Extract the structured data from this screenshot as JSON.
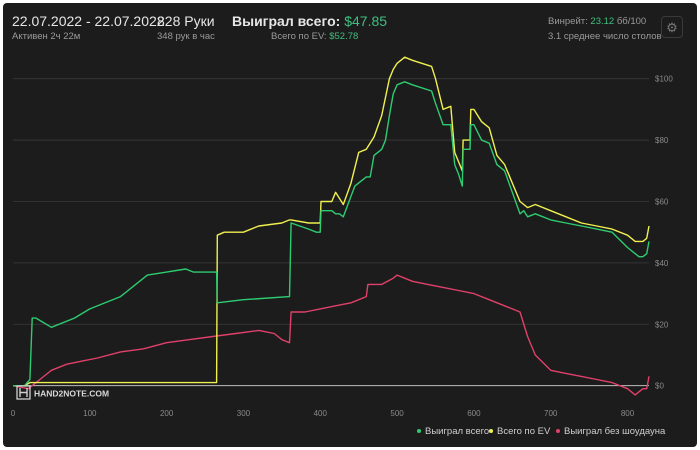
{
  "header": {
    "date_range": "22.07.2022 - 22.07.2022",
    "active_time": "Активен 2ч 22м",
    "hands_count": "828 Руки",
    "hands_per_hour": "348 рук в час",
    "won_label": "Выиграл всего:",
    "won_value": "$47.85",
    "ev_label": "Всего по EV:",
    "ev_value": "$52.78",
    "winrate_label": "Винрейт:",
    "winrate_value": "23.12",
    "winrate_unit": "бб/100",
    "avg_tables": "3.1 среднее число столов"
  },
  "logo_text": "HAND2NOTE.COM",
  "colors": {
    "background": "#1c1c1c",
    "won": "#2ecc71",
    "ev": "#f0f050",
    "no_showdown": "#e0406a",
    "grid": "#3a3a3a",
    "zero_line": "#bfbfbf"
  },
  "chart_data": {
    "type": "line",
    "xlim": [
      0,
      828
    ],
    "ylim": [
      -5,
      110
    ],
    "x_ticks": [
      0,
      100,
      200,
      300,
      400,
      500,
      600,
      700,
      800
    ],
    "y_ticks": [
      0,
      20,
      40,
      60,
      80,
      100
    ],
    "y_tick_labels": [
      "$0",
      "$20",
      "$40",
      "$60",
      "$80",
      "$100"
    ],
    "grid": true,
    "legend_position": "bottom-right",
    "series": [
      {
        "name": "Выиграл всего",
        "color": "#2ecc71",
        "points": [
          [
            0,
            0
          ],
          [
            15,
            0
          ],
          [
            22,
            2
          ],
          [
            25,
            22
          ],
          [
            30,
            22
          ],
          [
            50,
            19
          ],
          [
            80,
            22
          ],
          [
            100,
            25
          ],
          [
            140,
            29
          ],
          [
            175,
            36
          ],
          [
            200,
            37
          ],
          [
            225,
            38
          ],
          [
            235,
            37
          ],
          [
            265,
            37
          ],
          [
            266,
            27
          ],
          [
            300,
            28
          ],
          [
            360,
            29
          ],
          [
            362,
            53
          ],
          [
            385,
            51
          ],
          [
            395,
            50
          ],
          [
            400,
            50
          ],
          [
            401,
            57
          ],
          [
            415,
            57
          ],
          [
            420,
            56
          ],
          [
            425,
            56
          ],
          [
            430,
            55
          ],
          [
            445,
            65
          ],
          [
            460,
            68
          ],
          [
            465,
            68
          ],
          [
            470,
            75
          ],
          [
            480,
            77
          ],
          [
            485,
            80
          ],
          [
            490,
            88
          ],
          [
            495,
            95
          ],
          [
            500,
            98
          ],
          [
            510,
            99
          ],
          [
            520,
            98
          ],
          [
            545,
            96
          ],
          [
            550,
            92
          ],
          [
            560,
            85
          ],
          [
            570,
            85
          ],
          [
            575,
            72
          ],
          [
            580,
            69
          ],
          [
            585,
            65
          ],
          [
            586,
            77
          ],
          [
            595,
            77
          ],
          [
            596,
            85
          ],
          [
            600,
            85
          ],
          [
            610,
            80
          ],
          [
            620,
            79
          ],
          [
            630,
            72
          ],
          [
            640,
            70
          ],
          [
            660,
            56
          ],
          [
            665,
            57
          ],
          [
            670,
            55
          ],
          [
            680,
            56
          ],
          [
            700,
            54
          ],
          [
            720,
            53
          ],
          [
            740,
            52
          ],
          [
            760,
            51
          ],
          [
            780,
            50
          ],
          [
            800,
            45
          ],
          [
            810,
            43
          ],
          [
            815,
            42
          ],
          [
            820,
            42
          ],
          [
            825,
            43
          ],
          [
            828,
            47
          ]
        ]
      },
      {
        "name": "Всего по EV",
        "color": "#f0f050",
        "points": [
          [
            0,
            0
          ],
          [
            15,
            0
          ],
          [
            22,
            1
          ],
          [
            265,
            1
          ],
          [
            266,
            49
          ],
          [
            275,
            50
          ],
          [
            300,
            50
          ],
          [
            320,
            52
          ],
          [
            350,
            53
          ],
          [
            360,
            54
          ],
          [
            362,
            54
          ],
          [
            385,
            53
          ],
          [
            400,
            53
          ],
          [
            401,
            60
          ],
          [
            415,
            60
          ],
          [
            420,
            63
          ],
          [
            430,
            59
          ],
          [
            440,
            66
          ],
          [
            450,
            76
          ],
          [
            460,
            77
          ],
          [
            470,
            81
          ],
          [
            480,
            88
          ],
          [
            490,
            100
          ],
          [
            495,
            103
          ],
          [
            500,
            105
          ],
          [
            510,
            107
          ],
          [
            520,
            106
          ],
          [
            545,
            104
          ],
          [
            550,
            100
          ],
          [
            560,
            90
          ],
          [
            570,
            91
          ],
          [
            575,
            76
          ],
          [
            580,
            73
          ],
          [
            585,
            70
          ],
          [
            586,
            80
          ],
          [
            595,
            80
          ],
          [
            596,
            90
          ],
          [
            600,
            90
          ],
          [
            610,
            86
          ],
          [
            620,
            84
          ],
          [
            630,
            75
          ],
          [
            640,
            72
          ],
          [
            660,
            60
          ],
          [
            670,
            58
          ],
          [
            680,
            59
          ],
          [
            700,
            57
          ],
          [
            720,
            55
          ],
          [
            740,
            53
          ],
          [
            760,
            52
          ],
          [
            780,
            51
          ],
          [
            800,
            49
          ],
          [
            810,
            47
          ],
          [
            820,
            47
          ],
          [
            825,
            48
          ],
          [
            828,
            52
          ]
        ]
      },
      {
        "name": "Выиграл без шоудауна",
        "color": "#e0406a",
        "points": [
          [
            0,
            0
          ],
          [
            20,
            -1
          ],
          [
            35,
            2
          ],
          [
            50,
            5
          ],
          [
            70,
            7
          ],
          [
            90,
            8
          ],
          [
            110,
            9
          ],
          [
            140,
            11
          ],
          [
            170,
            12
          ],
          [
            200,
            14
          ],
          [
            230,
            15
          ],
          [
            260,
            16
          ],
          [
            290,
            17
          ],
          [
            320,
            18
          ],
          [
            340,
            17
          ],
          [
            350,
            15
          ],
          [
            360,
            14
          ],
          [
            362,
            24
          ],
          [
            380,
            24
          ],
          [
            400,
            25
          ],
          [
            420,
            26
          ],
          [
            440,
            27
          ],
          [
            460,
            29
          ],
          [
            462,
            33
          ],
          [
            480,
            33
          ],
          [
            495,
            35
          ],
          [
            500,
            36
          ],
          [
            510,
            35
          ],
          [
            520,
            34
          ],
          [
            540,
            33
          ],
          [
            560,
            32
          ],
          [
            580,
            31
          ],
          [
            600,
            30
          ],
          [
            620,
            28
          ],
          [
            640,
            26
          ],
          [
            660,
            24
          ],
          [
            670,
            16
          ],
          [
            680,
            10
          ],
          [
            700,
            5
          ],
          [
            720,
            4
          ],
          [
            740,
            3
          ],
          [
            760,
            2
          ],
          [
            780,
            1
          ],
          [
            800,
            -1
          ],
          [
            810,
            -3
          ],
          [
            815,
            -2
          ],
          [
            820,
            -1
          ],
          [
            825,
            -1
          ],
          [
            828,
            3
          ]
        ]
      }
    ]
  }
}
